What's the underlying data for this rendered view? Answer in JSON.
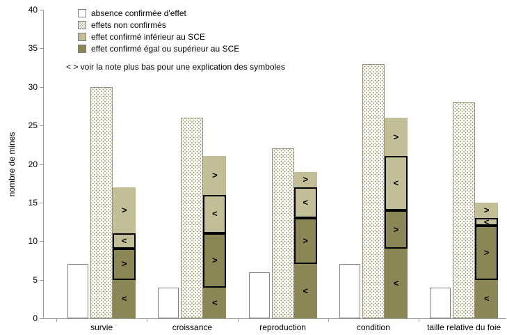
{
  "chart": {
    "ylabel": "nombre de mines",
    "legend": {
      "items": [
        {
          "label": "absence confirmée d'effet",
          "style": "white"
        },
        {
          "label": "effets non confirmés",
          "style": "dotted"
        },
        {
          "label": "effet confirmé inférieur au SCE",
          "style": "light"
        },
        {
          "label": "effet confirmé égal ou supérieur au SCE",
          "style": "dark"
        }
      ],
      "note": "< > voir la note plus bas pour une explication des symboles"
    }
  },
  "chart_data": {
    "type": "bar",
    "layout": "grouped; per category: white bar, dotted bar, stacked bar with <|> symbols",
    "title": "",
    "xlabel": "",
    "ylabel": "nombre de mines",
    "ylim": [
      0,
      40
    ],
    "yticks": [
      0,
      5,
      10,
      15,
      20,
      25,
      30,
      35,
      40
    ],
    "grid": false,
    "legend_position": "top-left inside plot",
    "categories": [
      "survie",
      "croissance",
      "reproduction",
      "condition",
      "taille relative du foie"
    ],
    "series": [
      {
        "name": "absence confirmée d'effet",
        "fill": "white",
        "values": [
          7,
          4,
          6,
          7,
          4
        ]
      },
      {
        "name": "effets non confirmés",
        "fill": "dotted",
        "values": [
          30,
          26,
          22,
          33,
          28
        ]
      },
      {
        "name": "effet confirmé (barre empilée)",
        "fill": "stacked",
        "stack_totals": [
          17,
          21,
          19,
          26,
          15
        ],
        "stacks": [
          [
            {
              "value": 5,
              "fill": "dark",
              "symbol": "<",
              "outlined": false
            },
            {
              "value": 4,
              "fill": "dark",
              "symbol": ">",
              "outlined": true
            },
            {
              "value": 2,
              "fill": "light",
              "symbol": "<",
              "outlined": true
            },
            {
              "value": 6,
              "fill": "light",
              "symbol": ">",
              "outlined": false
            }
          ],
          [
            {
              "value": 4,
              "fill": "dark",
              "symbol": "<",
              "outlined": false
            },
            {
              "value": 7,
              "fill": "dark",
              "symbol": ">",
              "outlined": true
            },
            {
              "value": 5,
              "fill": "light",
              "symbol": "<",
              "outlined": true
            },
            {
              "value": 5,
              "fill": "light",
              "symbol": ">",
              "outlined": false
            }
          ],
          [
            {
              "value": 7,
              "fill": "dark",
              "symbol": "<",
              "outlined": false
            },
            {
              "value": 6,
              "fill": "dark",
              "symbol": ">",
              "outlined": true
            },
            {
              "value": 4,
              "fill": "light",
              "symbol": "<",
              "outlined": true
            },
            {
              "value": 2,
              "fill": "light",
              "symbol": ">",
              "outlined": false
            }
          ],
          [
            {
              "value": 9,
              "fill": "dark",
              "symbol": "<",
              "outlined": false
            },
            {
              "value": 5,
              "fill": "dark",
              "symbol": ">",
              "outlined": true
            },
            {
              "value": 7,
              "fill": "light",
              "symbol": "<",
              "outlined": true
            },
            {
              "value": 5,
              "fill": "light",
              "symbol": ">",
              "outlined": false
            }
          ],
          [
            {
              "value": 5,
              "fill": "dark",
              "symbol": "<",
              "outlined": false
            },
            {
              "value": 7,
              "fill": "dark",
              "symbol": ">",
              "outlined": true
            },
            {
              "value": 1,
              "fill": "light",
              "symbol": "<",
              "outlined": true
            },
            {
              "value": 2,
              "fill": "light",
              "symbol": ">",
              "outlined": false
            }
          ]
        ]
      }
    ],
    "colors": {
      "light": "#C2BF98",
      "dark": "#8B8656",
      "dot": "#A29A6B",
      "axis": "#9A9A9A",
      "outline": "#7F7F7F",
      "segment_outline": "#000000"
    }
  }
}
